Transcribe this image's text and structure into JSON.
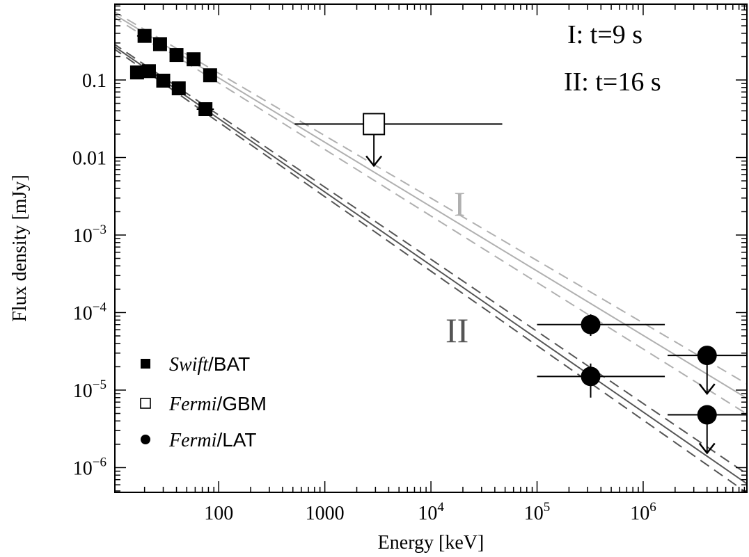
{
  "chart_data": {
    "type": "scatter",
    "xlabel": "Energy [keV]",
    "ylabel": "Flux density [mJy]",
    "x_scale": "log",
    "y_scale": "log",
    "xlim": [
      10.5,
      9500000
    ],
    "ylim": [
      4.8e-07,
      0.95
    ],
    "grid": false,
    "x_ticks": [
      {
        "value": 100,
        "base": "100",
        "exp": ""
      },
      {
        "value": 1000,
        "base": "1000",
        "exp": ""
      },
      {
        "value": 10000,
        "base": "10",
        "exp": "4"
      },
      {
        "value": 100000,
        "base": "10",
        "exp": "5"
      },
      {
        "value": 1000000,
        "base": "10",
        "exp": "6"
      }
    ],
    "y_ticks": [
      {
        "value": 0.1,
        "base": "0.1",
        "exp": ""
      },
      {
        "value": 0.01,
        "base": "0.01",
        "exp": ""
      },
      {
        "value": 0.001,
        "base": "10",
        "exp": "−3"
      },
      {
        "value": 0.0001,
        "base": "10",
        "exp": "−4"
      },
      {
        "value": 1e-05,
        "base": "10",
        "exp": "−5"
      },
      {
        "value": 1e-06,
        "base": "10",
        "exp": "−6"
      }
    ],
    "annotations": {
      "epoch_1": "I: t=9 s",
      "epoch_2": "II: t=16 s",
      "line_label_1": "I",
      "line_label_2": "II"
    },
    "legend": {
      "placement": "bottom-left",
      "entries": [
        {
          "italic": "Swift",
          "rest": "/BAT",
          "marker": "filled-square"
        },
        {
          "italic": "Fermi",
          "rest": "/GBM",
          "marker": "open-square"
        },
        {
          "italic": "Fermi",
          "rest": "/LAT",
          "marker": "filled-circle"
        }
      ]
    },
    "colors": {
      "epoch_1_model": "#b0b0b0",
      "epoch_2_model": "#555555",
      "data": "#000000"
    },
    "models": [
      {
        "epoch": "I",
        "style": "solid",
        "points": [
          [
            10,
            0.72
          ],
          [
            10000000,
            7.5e-06
          ]
        ]
      },
      {
        "epoch": "I",
        "style": "dashed",
        "points": [
          [
            10,
            0.78
          ],
          [
            10000000,
            1.15e-05
          ]
        ]
      },
      {
        "epoch": "I",
        "style": "dashed",
        "points": [
          [
            10,
            0.66
          ],
          [
            10000000,
            4.7e-06
          ]
        ]
      },
      {
        "epoch": "II",
        "style": "solid",
        "points": [
          [
            10,
            0.28
          ],
          [
            10000000,
            5.9e-07
          ]
        ]
      },
      {
        "epoch": "II",
        "style": "dashed",
        "points": [
          [
            10,
            0.3
          ],
          [
            10000000,
            7.9e-07
          ]
        ]
      },
      {
        "epoch": "II",
        "style": "dashed",
        "points": [
          [
            10,
            0.26
          ],
          [
            10000000,
            4.5e-07
          ]
        ]
      }
    ],
    "series": [
      {
        "name": "Swift/BAT",
        "epoch": "I",
        "marker": "filled-square",
        "points": [
          {
            "x": 20,
            "y": 0.37,
            "xerr": [
              17,
              23
            ]
          },
          {
            "x": 28,
            "y": 0.29,
            "xerr": [
              24,
              32
            ]
          },
          {
            "x": 40,
            "y": 0.21,
            "xerr": [
              35,
              46
            ]
          },
          {
            "x": 58,
            "y": 0.185,
            "xerr": [
              50,
              67
            ]
          },
          {
            "x": 83,
            "y": 0.115,
            "xerr": [
              73,
              95
            ]
          }
        ]
      },
      {
        "name": "Swift/BAT",
        "epoch": "II",
        "marker": "filled-square",
        "points": [
          {
            "x": 17,
            "y": 0.125,
            "xerr": [
              15,
              19
            ]
          },
          {
            "x": 22,
            "y": 0.13,
            "xerr": [
              19,
              25
            ]
          },
          {
            "x": 30,
            "y": 0.098,
            "xerr": [
              27,
              34
            ]
          },
          {
            "x": 42,
            "y": 0.078,
            "xerr": [
              37,
              48
            ]
          },
          {
            "x": 75,
            "y": 0.042,
            "xerr": [
              62,
              90
            ]
          }
        ]
      },
      {
        "name": "Fermi/GBM",
        "marker": "open-square",
        "upper_limit": true,
        "points": [
          {
            "x": 2900,
            "y": 0.027,
            "xerr": [
              520,
              47000
            ]
          }
        ]
      },
      {
        "name": "Fermi/LAT",
        "epoch": "I",
        "marker": "filled-circle",
        "points": [
          {
            "x": 320000,
            "y": 7e-05,
            "xerr": [
              100000,
              1600000
            ],
            "yerr": [
              5e-05,
              9.5e-05
            ]
          },
          {
            "x": 4000000,
            "y": 2.8e-05,
            "xerr": [
              1700000,
              10000000
            ],
            "upper_limit": true
          }
        ]
      },
      {
        "name": "Fermi/LAT",
        "epoch": "II",
        "marker": "filled-circle",
        "points": [
          {
            "x": 320000,
            "y": 1.5e-05,
            "xerr": [
              100000,
              1600000
            ],
            "yerr": [
              8e-06,
              2.2e-05
            ]
          },
          {
            "x": 4000000,
            "y": 4.8e-06,
            "xerr": [
              1700000,
              10000000
            ],
            "upper_limit": true
          }
        ]
      }
    ]
  }
}
